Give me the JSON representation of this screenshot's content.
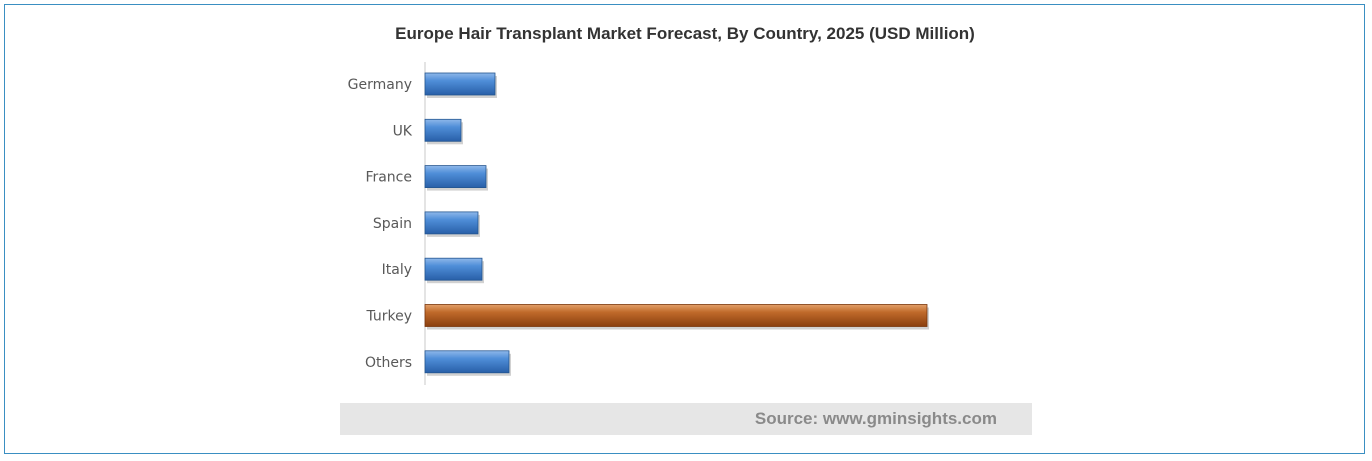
{
  "chart_data": {
    "type": "bar",
    "orientation": "horizontal",
    "title": "Europe Hair Transplant Market Forecast, By Country, 2025 (USD Million)",
    "categories": [
      "Germany",
      "UK",
      "France",
      "Spain",
      "Italy",
      "Turkey",
      "Others"
    ],
    "values": [
      70,
      36,
      61,
      53,
      57,
      502,
      84
    ],
    "value_axis_labels_shown": false,
    "grid": false,
    "bar_color": "#3f7fcc",
    "highlight_color": "#b5581a",
    "highlight_category": "Turkey"
  },
  "source": "Source: www.gminsights.com",
  "colors": {
    "frame_border": "#3a8fc2",
    "axis": "#c8c8c8",
    "label": "#595959",
    "source_bg": "#e6e6e6",
    "source_text": "#8a8a8a"
  }
}
